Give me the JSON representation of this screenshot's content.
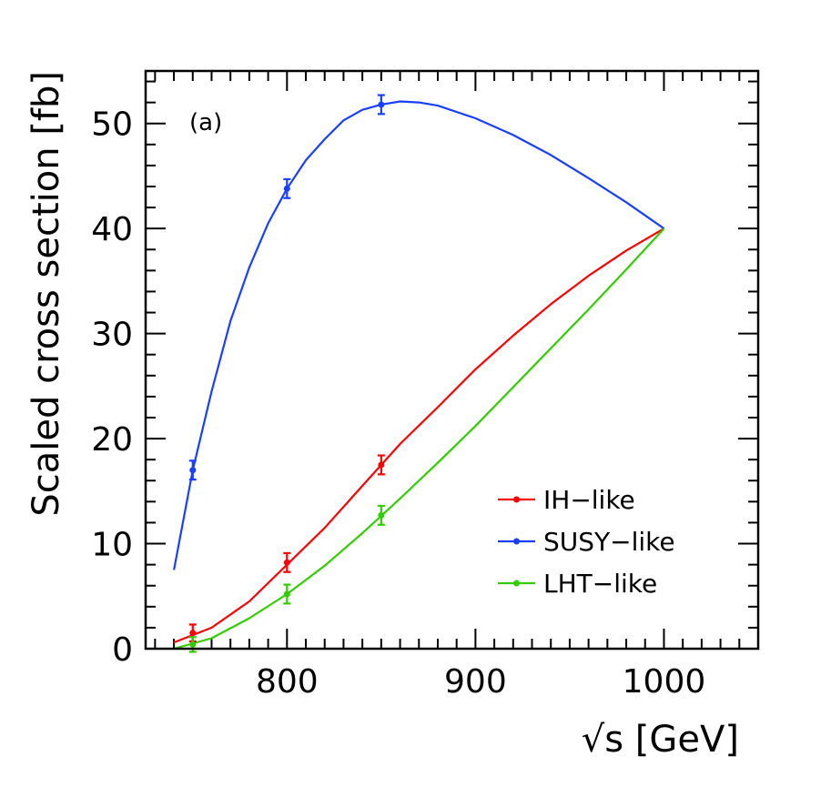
{
  "chart_data": {
    "type": "line",
    "panel_label": "(a)",
    "xlabel": "√s [GeV]",
    "ylabel": "Scaled cross section [fb]",
    "xlim": [
      725,
      1050
    ],
    "ylim": [
      0,
      55
    ],
    "x_ticks": [
      800,
      900,
      1000
    ],
    "y_ticks": [
      0,
      10,
      20,
      30,
      40,
      50
    ],
    "grid": false,
    "legend_position": "lower-right",
    "series": [
      {
        "name": "IH−like",
        "color": "#ff0000",
        "curve": [
          [
            740,
            0.6
          ],
          [
            760,
            2.0
          ],
          [
            780,
            4.5
          ],
          [
            800,
            8.0
          ],
          [
            820,
            11.5
          ],
          [
            840,
            15.5
          ],
          [
            860,
            19.5
          ],
          [
            880,
            23.0
          ],
          [
            900,
            26.6
          ],
          [
            920,
            29.8
          ],
          [
            940,
            32.8
          ],
          [
            960,
            35.5
          ],
          [
            980,
            37.9
          ],
          [
            1000,
            40.0
          ]
        ],
        "points": [
          {
            "x": 750,
            "y": 1.5,
            "err": 0.8
          },
          {
            "x": 800,
            "y": 8.2,
            "err": 0.9
          },
          {
            "x": 850,
            "y": 17.5,
            "err": 0.9
          }
        ]
      },
      {
        "name": "SUSY−like",
        "color": "#1a3fff",
        "curve": [
          [
            740,
            7.5
          ],
          [
            750,
            17.0
          ],
          [
            760,
            24.5
          ],
          [
            770,
            31.2
          ],
          [
            780,
            36.3
          ],
          [
            790,
            40.5
          ],
          [
            800,
            43.8
          ],
          [
            810,
            46.5
          ],
          [
            820,
            48.5
          ],
          [
            830,
            50.3
          ],
          [
            840,
            51.3
          ],
          [
            850,
            51.8
          ],
          [
            860,
            52.1
          ],
          [
            870,
            52.0
          ],
          [
            880,
            51.7
          ],
          [
            900,
            50.5
          ],
          [
            920,
            48.9
          ],
          [
            940,
            47.0
          ],
          [
            960,
            44.8
          ],
          [
            980,
            42.5
          ],
          [
            1000,
            40.0
          ]
        ],
        "points": [
          {
            "x": 750,
            "y": 17.0,
            "err": 0.9
          },
          {
            "x": 800,
            "y": 43.8,
            "err": 0.9
          },
          {
            "x": 850,
            "y": 51.8,
            "err": 0.9
          }
        ]
      },
      {
        "name": "LHT−like",
        "color": "#33cc00",
        "curve": [
          [
            740,
            0.0
          ],
          [
            760,
            1.0
          ],
          [
            780,
            2.9
          ],
          [
            800,
            5.2
          ],
          [
            820,
            7.9
          ],
          [
            840,
            11.0
          ],
          [
            860,
            14.3
          ],
          [
            880,
            17.7
          ],
          [
            900,
            21.2
          ],
          [
            920,
            24.9
          ],
          [
            940,
            28.6
          ],
          [
            960,
            32.3
          ],
          [
            980,
            36.1
          ],
          [
            1000,
            40.0
          ]
        ],
        "points": [
          {
            "x": 750,
            "y": 0.4,
            "err": 0.7
          },
          {
            "x": 800,
            "y": 5.2,
            "err": 0.9
          },
          {
            "x": 850,
            "y": 12.7,
            "err": 0.9
          }
        ]
      }
    ]
  }
}
